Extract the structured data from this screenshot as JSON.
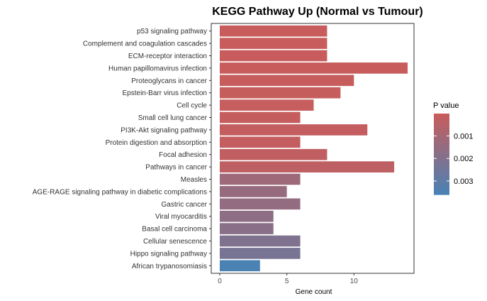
{
  "chart_data": {
    "type": "bar",
    "orientation": "horizontal",
    "title": "KEGG Pathway Up (Normal vs Tumour)",
    "xlabel": "Gene count",
    "ylabel": "",
    "xlim": [
      0,
      14
    ],
    "x_ticks": [
      "0",
      "5",
      "10"
    ],
    "x_tick_values": [
      0,
      5,
      10
    ],
    "grid": false,
    "categories": [
      "p53 signaling pathway",
      "Complement and coagulation cascades",
      "ECM-receptor interaction",
      "Human papillomavirus infection",
      "Proteoglycans in cancer",
      "Epstein-Barr virus infection",
      "Cell cycle",
      "Small cell lung cancer",
      "PI3K-Akt signaling pathway",
      "Protein digestion and absorption",
      "Focal adhesion",
      "Pathways in cancer",
      "Measles",
      "AGE-RAGE signaling pathway in diabetic complications",
      "Gastric cancer",
      "Viral myocarditis",
      "Basal cell carcinoma",
      "Cellular senescence",
      "Hippo signaling pathway",
      "African trypanosomiasis"
    ],
    "values": [
      8,
      8,
      8,
      14,
      10,
      9,
      7,
      6,
      11,
      6,
      8,
      13,
      6,
      5,
      6,
      4,
      4,
      6,
      6,
      3
    ],
    "p_values": [
      1e-05,
      1e-05,
      2e-05,
      2e-05,
      4e-05,
      6e-05,
      8e-05,
      0.0001,
      0.00012,
      0.00015,
      0.0002,
      0.0003,
      0.0012,
      0.0014,
      0.0015,
      0.0017,
      0.0018,
      0.0021,
      0.0023,
      0.0036
    ],
    "legend": {
      "title": "P value",
      "placement": "right",
      "labels": [
        "0.001",
        "0.002",
        "0.003"
      ],
      "label_values": [
        0.001,
        0.002,
        0.003
      ],
      "range": [
        1e-05,
        0.0036
      ],
      "low_color": "#c85c5c",
      "high_color": "#4a82b4"
    }
  }
}
